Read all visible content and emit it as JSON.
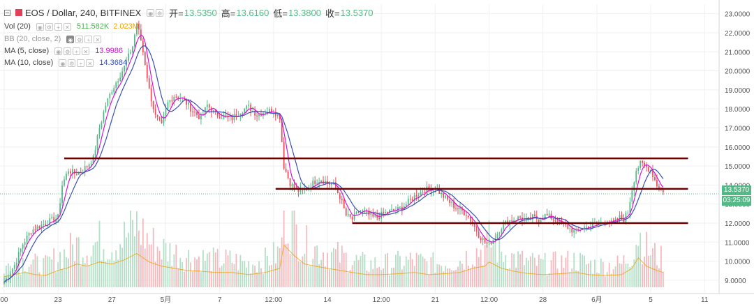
{
  "header": {
    "symbol": "EOS / Dollar, 240, BITFINEX",
    "open_label": "开=",
    "open": "13.5350",
    "high_label": "高=",
    "high": "13.6160",
    "low_label": "低=",
    "low": "13.3800",
    "close_label": "收=",
    "close": "13.5370"
  },
  "indicators": [
    {
      "name": "Vol (20)",
      "values": [
        "511.582K",
        "2.023M"
      ]
    },
    {
      "name": "BB (20, close, 2)",
      "values": []
    },
    {
      "name": "MA (5, close)",
      "values": [
        "13.9986"
      ]
    },
    {
      "name": "MA (10, close)",
      "values": [
        "14.3684"
      ]
    }
  ],
  "price_tags": {
    "last_price": "13.5370",
    "countdown": "03:25:09"
  },
  "colors": {
    "up": "#53b987",
    "down": "#eb4d5c",
    "ma5": "#d316d3",
    "ma10": "#3a4fb0",
    "hline": "#6b0000",
    "vol_ma": "#f0a000"
  },
  "chart_data": {
    "type": "candlestick",
    "title": "EOS / Dollar, 240, BITFINEX",
    "y_ticks": [
      "23.0000",
      "22.0000",
      "21.0000",
      "20.0000",
      "19.0000",
      "18.0000",
      "17.0000",
      "16.0000",
      "15.0000",
      "14.0000",
      "13.0000",
      "12.0000",
      "11.0000",
      "10.0000",
      "9.0000"
    ],
    "ylim": [
      8.3,
      23.5
    ],
    "x_ticks": [
      "00",
      "23",
      "27",
      "5月",
      "7",
      "12:00",
      "14",
      "12:00",
      "21",
      "12:00",
      "28",
      "6月",
      "5",
      "11"
    ],
    "x_tick_pos": [
      0,
      26,
      52,
      78,
      104,
      130,
      156,
      182,
      208,
      234,
      260,
      286,
      312,
      338
    ],
    "x_range": [
      -2,
      345
    ],
    "close_path": [
      [
        0,
        8.9
      ],
      [
        5,
        9.8
      ],
      [
        9,
        10.9
      ],
      [
        13,
        11.6
      ],
      [
        18,
        11.9
      ],
      [
        22,
        12.1
      ],
      [
        26,
        12.3
      ],
      [
        28,
        14.0
      ],
      [
        31,
        14.8
      ],
      [
        34,
        14.6
      ],
      [
        37,
        14.7
      ],
      [
        40,
        15.0
      ],
      [
        43,
        15.4
      ],
      [
        46,
        17.0
      ],
      [
        49,
        18.2
      ],
      [
        52,
        19.0
      ],
      [
        55,
        19.6
      ],
      [
        58,
        20.2
      ],
      [
        62,
        21.3
      ],
      [
        64,
        22.5
      ],
      [
        66,
        21.6
      ],
      [
        68,
        20.4
      ],
      [
        70,
        19.0
      ],
      [
        73,
        17.6
      ],
      [
        76,
        17.1
      ],
      [
        79,
        18.3
      ],
      [
        82,
        18.7
      ],
      [
        85,
        18.6
      ],
      [
        88,
        18.3
      ],
      [
        91,
        17.9
      ],
      [
        95,
        17.5
      ],
      [
        98,
        18.2
      ],
      [
        102,
        17.7
      ],
      [
        106,
        17.6
      ],
      [
        110,
        17.5
      ],
      [
        114,
        17.9
      ],
      [
        118,
        18.1
      ],
      [
        122,
        17.7
      ],
      [
        126,
        17.9
      ],
      [
        130,
        17.9
      ],
      [
        133,
        17.6
      ],
      [
        135,
        15.0
      ],
      [
        138,
        14.1
      ],
      [
        141,
        13.7
      ],
      [
        144,
        13.7
      ],
      [
        147,
        13.9
      ],
      [
        150,
        14.2
      ],
      [
        153,
        14.3
      ],
      [
        156,
        14.1
      ],
      [
        159,
        14.0
      ],
      [
        162,
        13.4
      ],
      [
        165,
        12.4
      ],
      [
        168,
        12.2
      ],
      [
        171,
        12.6
      ],
      [
        174,
        12.6
      ],
      [
        177,
        12.3
      ],
      [
        180,
        12.3
      ],
      [
        183,
        12.5
      ],
      [
        186,
        12.6
      ],
      [
        190,
        12.7
      ],
      [
        194,
        13.0
      ],
      [
        198,
        13.4
      ],
      [
        202,
        13.7
      ],
      [
        205,
        13.8
      ],
      [
        208,
        13.9
      ],
      [
        211,
        13.5
      ],
      [
        214,
        13.2
      ],
      [
        217,
        12.9
      ],
      [
        220,
        12.7
      ],
      [
        223,
        12.5
      ],
      [
        226,
        12.0
      ],
      [
        229,
        11.4
      ],
      [
        232,
        11.0
      ],
      [
        234,
        10.9
      ],
      [
        237,
        11.3
      ],
      [
        240,
        11.8
      ],
      [
        243,
        12.1
      ],
      [
        246,
        12.2
      ],
      [
        249,
        12.3
      ],
      [
        252,
        12.1
      ],
      [
        255,
        12.3
      ],
      [
        258,
        12.2
      ],
      [
        261,
        12.4
      ],
      [
        264,
        12.3
      ],
      [
        267,
        12.1
      ],
      [
        270,
        11.9
      ],
      [
        273,
        11.7
      ],
      [
        276,
        11.5
      ],
      [
        279,
        11.8
      ],
      [
        282,
        11.8
      ],
      [
        285,
        11.9
      ],
      [
        288,
        12.0
      ],
      [
        291,
        12.2
      ],
      [
        293,
        12.0
      ],
      [
        295,
        12.1
      ],
      [
        297,
        12.3
      ],
      [
        299,
        12.2
      ],
      [
        301,
        12.6
      ],
      [
        303,
        13.8
      ],
      [
        305,
        14.8
      ],
      [
        307,
        15.1
      ],
      [
        309,
        15.0
      ],
      [
        312,
        14.8
      ],
      [
        315,
        14.0
      ],
      [
        318,
        13.6
      ]
    ],
    "volume_path": [
      [
        0,
        0.25
      ],
      [
        5,
        0.3
      ],
      [
        10,
        0.35
      ],
      [
        15,
        0.3
      ],
      [
        20,
        0.28
      ],
      [
        26,
        0.4
      ],
      [
        30,
        0.45
      ],
      [
        35,
        0.55
      ],
      [
        40,
        0.5
      ],
      [
        46,
        0.6
      ],
      [
        52,
        0.55
      ],
      [
        58,
        0.65
      ],
      [
        64,
        0.8
      ],
      [
        70,
        0.6
      ],
      [
        76,
        0.5
      ],
      [
        82,
        0.45
      ],
      [
        88,
        0.4
      ],
      [
        95,
        0.38
      ],
      [
        102,
        0.35
      ],
      [
        110,
        0.35
      ],
      [
        118,
        0.3
      ],
      [
        126,
        0.35
      ],
      [
        133,
        0.45
      ],
      [
        135,
        1.0
      ],
      [
        140,
        0.75
      ],
      [
        145,
        0.55
      ],
      [
        150,
        0.5
      ],
      [
        156,
        0.45
      ],
      [
        162,
        0.4
      ],
      [
        168,
        0.35
      ],
      [
        175,
        0.3
      ],
      [
        182,
        0.3
      ],
      [
        190,
        0.32
      ],
      [
        198,
        0.35
      ],
      [
        205,
        0.3
      ],
      [
        212,
        0.32
      ],
      [
        220,
        0.35
      ],
      [
        226,
        0.45
      ],
      [
        232,
        0.5
      ],
      [
        234,
        0.6
      ],
      [
        240,
        0.45
      ],
      [
        246,
        0.38
      ],
      [
        252,
        0.33
      ],
      [
        260,
        0.3
      ],
      [
        268,
        0.32
      ],
      [
        276,
        0.35
      ],
      [
        282,
        0.3
      ],
      [
        290,
        0.28
      ],
      [
        298,
        0.3
      ],
      [
        303,
        0.45
      ],
      [
        306,
        0.7
      ],
      [
        310,
        0.5
      ],
      [
        315,
        0.4
      ],
      [
        318,
        0.35
      ]
    ],
    "horizontal_lines": [
      {
        "y": 15.4,
        "x_start": 29,
        "x_end": 330
      },
      {
        "y": 13.8,
        "x_start": 131,
        "x_end": 330
      },
      {
        "y": 12.0,
        "x_start": 168,
        "x_end": 330
      }
    ]
  }
}
